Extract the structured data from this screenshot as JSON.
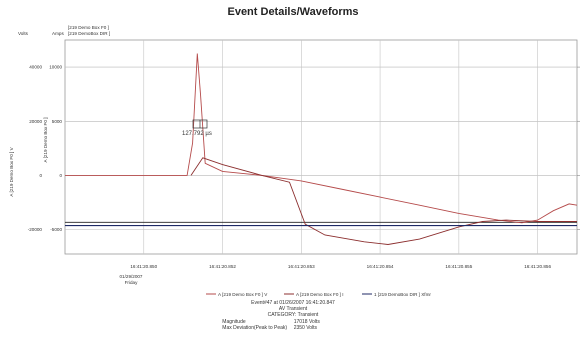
{
  "chart_data": {
    "type": "line",
    "title": "Event Details/Waveforms",
    "left_axis_unit": "Volts",
    "right_axis_unit": "Amps",
    "top_legend": [
      "[219 Demo Box F0 ]",
      "[219 DemoBox DIR ]"
    ],
    "left_axis_label": "A [219 Demo Box F0 ] V",
    "inner_axis_label": "A [219 Demo Box F0 ]",
    "volts_ticks": [
      "40000",
      "20000",
      "0",
      "-20000"
    ],
    "amps_ticks": [
      "10000",
      "5000",
      "0",
      "-5000"
    ],
    "ylim_volts": [
      -29000,
      50000
    ],
    "x_ticks": [
      "16:41:20.850",
      "16:41:20.852",
      "16:41:20.853",
      "16:41:20.854",
      "16:41:20.855",
      "16:41:20.856"
    ],
    "first_tick_date": "01/29/2007",
    "first_tick_day": "Friday",
    "annotation": "127.792 µs",
    "series": [
      {
        "name": "A [219 Demo Box F0 ] V",
        "color": "#b54b4b",
        "axis": "volts",
        "points": [
          [
            0.0,
            0
          ],
          [
            1.0,
            0
          ],
          [
            1.55,
            0
          ],
          [
            1.62,
            12000
          ],
          [
            1.68,
            45000
          ],
          [
            1.72,
            30000
          ],
          [
            1.78,
            4500
          ],
          [
            2.0,
            1500
          ],
          [
            2.5,
            0
          ],
          [
            3.0,
            -2000
          ],
          [
            3.5,
            -5000
          ],
          [
            4.0,
            -8000
          ],
          [
            4.5,
            -11000
          ],
          [
            5.0,
            -14000
          ],
          [
            5.5,
            -16500
          ],
          [
            5.8,
            -17500
          ],
          [
            6.0,
            -16500
          ],
          [
            6.2,
            -13000
          ],
          [
            6.4,
            -10500
          ],
          [
            6.5,
            -11000
          ]
        ]
      },
      {
        "name": "A [219 Demo Box F0 ] I",
        "color": "#8c2f2f",
        "axis": "volts",
        "points": [
          [
            1.6,
            0
          ],
          [
            1.75,
            6500
          ],
          [
            2.0,
            4000
          ],
          [
            2.5,
            0
          ],
          [
            2.85,
            -2500
          ],
          [
            3.05,
            -18000
          ],
          [
            3.3,
            -22000
          ],
          [
            3.8,
            -24500
          ],
          [
            4.1,
            -25500
          ],
          [
            4.5,
            -23500
          ],
          [
            5.0,
            -19000
          ],
          [
            5.3,
            -17000
          ],
          [
            5.6,
            -16500
          ],
          [
            6.0,
            -17000
          ],
          [
            6.5,
            -17000
          ]
        ]
      },
      {
        "name": "1 [219 DemoBox DIR ] Xfmr",
        "color": "#1f2a66",
        "axis": "volts",
        "points": [
          [
            0.0,
            -18500
          ],
          [
            6.5,
            -18500
          ]
        ]
      }
    ],
    "reference_lines": [
      {
        "value": -17300,
        "color": "#222222"
      }
    ],
    "bottom_legend": [
      {
        "label": "A [219 Demo Box F0 ] V",
        "color": "#b54b4b"
      },
      {
        "label": "A [219 Demo Box F0 ] I",
        "color": "#8c2f2f"
      },
      {
        "label": "1 [219 DemoBox DIR ] Xfmr",
        "color": "#1f2a66"
      }
    ]
  },
  "event_info": {
    "line1": "Event#47 at 01/26/2007 16:41:20.847",
    "line2": "AV Transient",
    "line3": "CATEGORY: Transient",
    "magnitude_label": "Magnitude",
    "magnitude_value": "17018 Volts",
    "deviation_label": "Max Deviation(Peak to Peak)",
    "deviation_value": "2350 Volts"
  }
}
